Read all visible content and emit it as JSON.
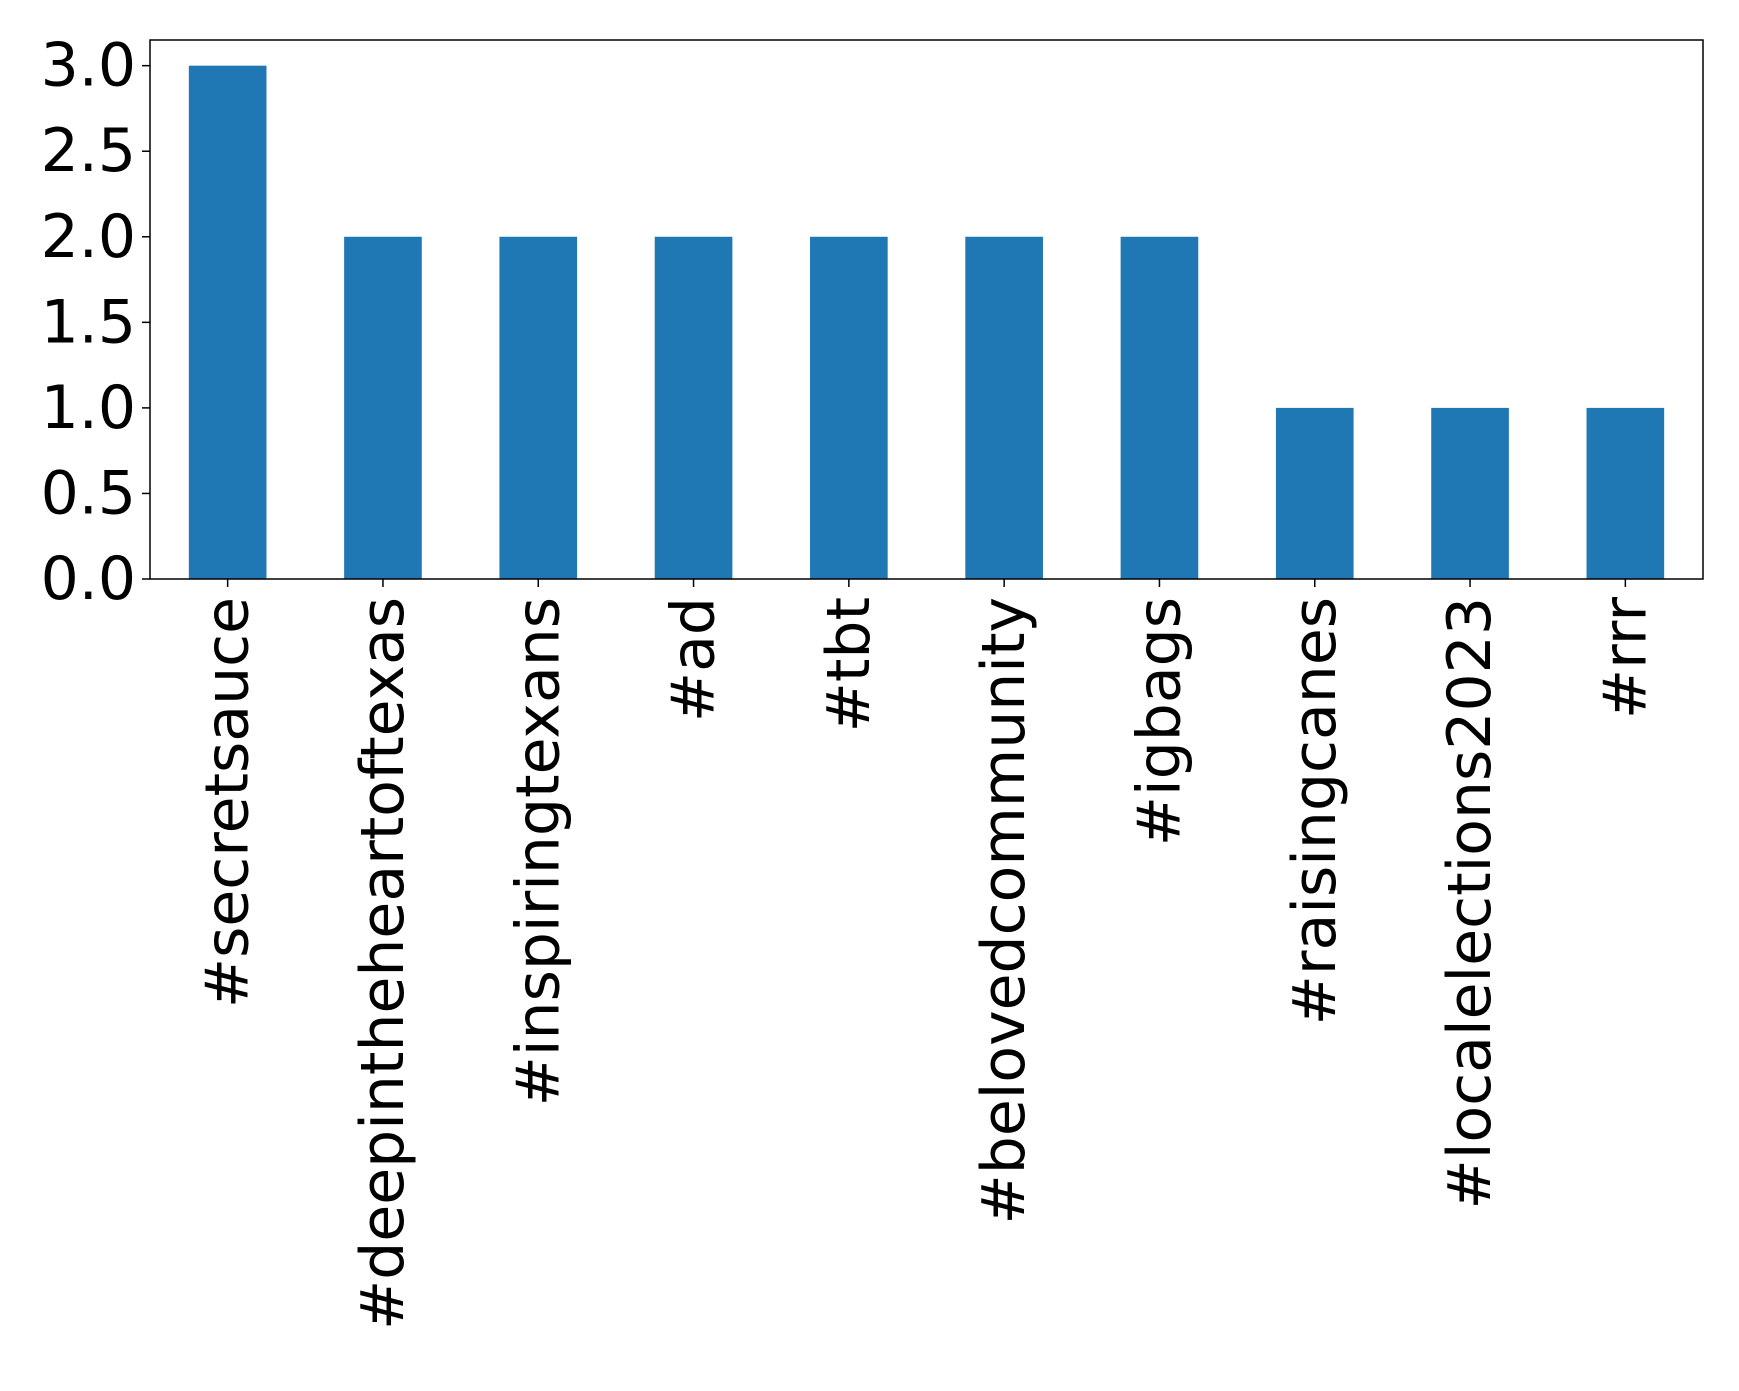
{
  "chart_data": {
    "type": "bar",
    "title": "",
    "xlabel": "",
    "ylabel": "",
    "categories": [
      "#secretsauce",
      "#deepintheheartoftexas",
      "#inspiringtexans",
      "#ad",
      "#tbt",
      "#belovedcommunity",
      "#igbags",
      "#raisingcanes",
      "#localelections2023",
      "#rrr"
    ],
    "values": [
      3,
      2,
      2,
      2,
      2,
      2,
      2,
      1,
      1,
      1
    ],
    "ylim": [
      0,
      3.15
    ],
    "yticks": [
      0.0,
      0.5,
      1.0,
      1.5,
      2.0,
      2.5,
      3.0
    ],
    "ytick_labels": [
      "0.0",
      "0.5",
      "1.0",
      "1.5",
      "2.0",
      "2.5",
      "3.0"
    ],
    "grid": false,
    "legend": "none",
    "bar_color": "#1f77b4",
    "x_tick_rotation": "vertical"
  }
}
